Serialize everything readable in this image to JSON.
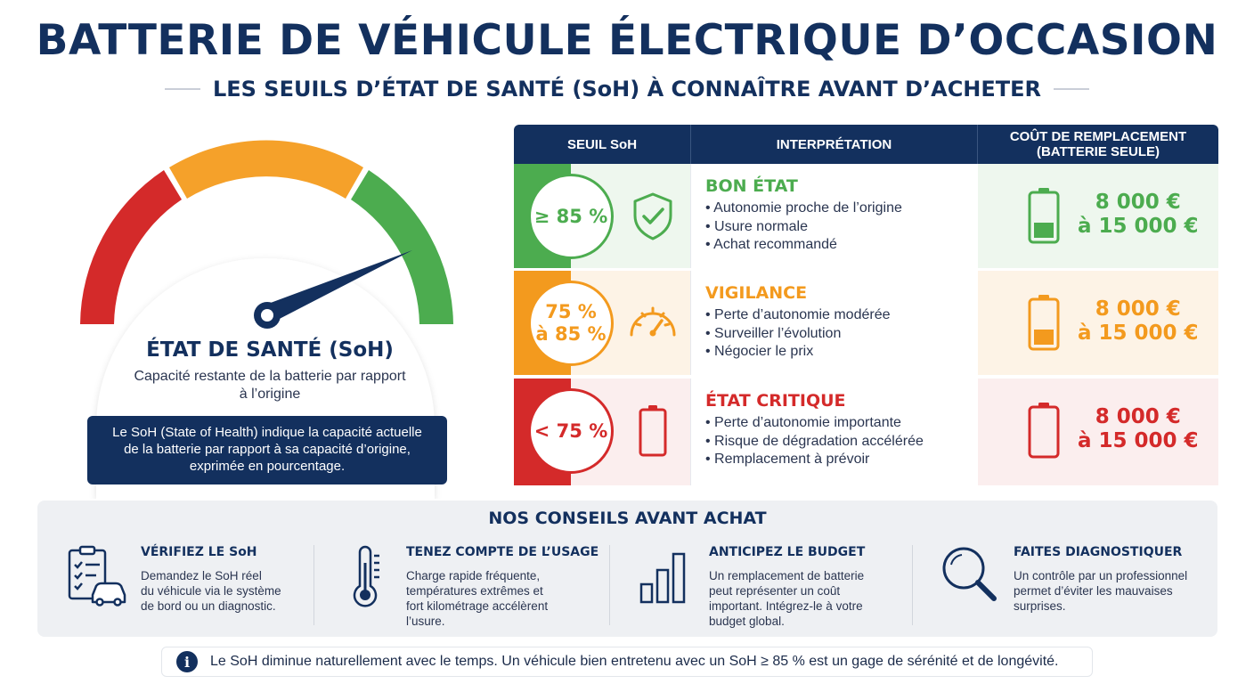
{
  "header": {
    "title": "BATTERIE DE VÉHICULE ÉLECTRIQUE D’OCCASION",
    "subtitle": "LES SEUILS D’ÉTAT DE SANTÉ (SoH) À CONNAÎTRE AVANT D’ACHETER"
  },
  "gauge": {
    "title": "ÉTAT DE SANTÉ (SoH)",
    "description": "Capacité restante de la batterie par rapport à l’origine",
    "definition": "Le SoH (State of Health) indique la capacité actuelle de la batterie par rapport à sa capacité d’origine, exprimée en pourcentage.",
    "colors": {
      "red": "#d42a2a",
      "orange": "#f5a12a",
      "green": "#4cac4f",
      "needle": "#13305e"
    }
  },
  "table": {
    "headers": [
      "SEUIL SoH",
      "INTERPRÉTATION",
      "COÛT DE REMPLACEMENT (BATTERIE SEULE)"
    ],
    "rows": [
      {
        "threshold": "≥ 85 %",
        "icon": "shield-check-icon",
        "level": "BON ÉTAT",
        "bullets": [
          "Autonomie proche de l’origine",
          "Usure normale",
          "Achat recommandé"
        ],
        "cost_line1": "8 000 €",
        "cost_line2": "à 15 000 €",
        "battery_fill": 0.33,
        "color": "#4cac4f",
        "bg": "#eef7ee"
      },
      {
        "threshold_line1": "75 %",
        "threshold_line2": "à 85 %",
        "icon": "speedometer-icon",
        "level": "VIGILANCE",
        "bullets": [
          "Perte d’autonomie modérée",
          "Surveiller l’évolution",
          "Négocier le prix"
        ],
        "cost_line1": "8 000 €",
        "cost_line2": "à 15 000 €",
        "battery_fill": 0.33,
        "color": "#f39a1e",
        "bg": "#fdf3e6"
      },
      {
        "threshold": "< 75 %",
        "icon": "battery-empty-icon",
        "level": "ÉTAT CRITIQUE",
        "bullets": [
          "Perte d’autonomie importante",
          "Risque de dégradation accélérée",
          "Remplacement à prévoir"
        ],
        "cost_line1": "8 000 €",
        "cost_line2": "à 15 000 €",
        "battery_fill": 0,
        "color": "#d42a2a",
        "bg": "#fbeeee"
      }
    ]
  },
  "tips": {
    "title": "NOS CONSEILS AVANT ACHAT",
    "items": [
      {
        "icon": "checklist-car-icon",
        "title": "VÉRIFIEZ LE SoH",
        "lines": [
          "Demandez le SoH réel",
          "du véhicule via le système",
          "de bord ou un diagnostic."
        ]
      },
      {
        "icon": "thermometer-icon",
        "title": "TENEZ COMPTE DE L’USAGE",
        "lines": [
          "Charge rapide fréquente,",
          "températures extrêmes et",
          "fort kilométrage accélèrent",
          "l’usure."
        ]
      },
      {
        "icon": "bar-chart-icon",
        "title": "ANTICIPEZ LE BUDGET",
        "lines": [
          "Un remplacement de batterie",
          "peut représenter un coût",
          "important. Intégrez-le à votre",
          "budget global."
        ]
      },
      {
        "icon": "magnifier-icon",
        "title": "FAITES DIAGNOSTIQUER",
        "lines": [
          "Un contrôle par un professionnel",
          "permet d’éviter les mauvaises",
          "surprises."
        ]
      }
    ]
  },
  "note": {
    "icon": "info-icon",
    "icon_glyph": "i",
    "text": "Le SoH diminue naturellement avec le temps. Un véhicule bien entretenu avec un SoH ≥ 85 % est un gage de sérénité et de longévité."
  }
}
